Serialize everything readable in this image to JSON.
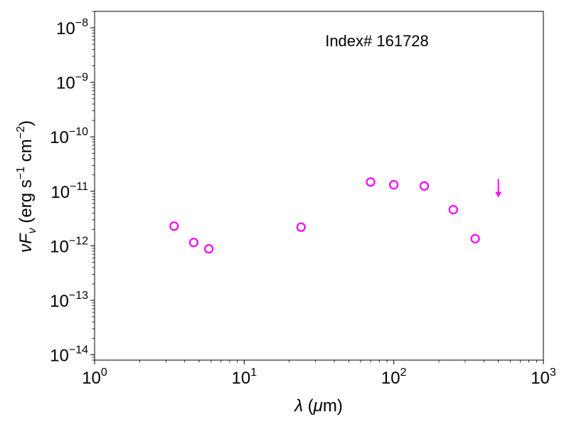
{
  "chart_data": {
    "type": "scatter",
    "annotation": "Index# 161728",
    "x_scale": "log",
    "y_scale": "log",
    "xlim": [
      1,
      1000
    ],
    "ylim": [
      8e-15,
      2e-08
    ],
    "x_ticks": [
      {
        "value": 1,
        "base": "10",
        "exp": "0"
      },
      {
        "value": 10,
        "base": "10",
        "exp": "1"
      },
      {
        "value": 100,
        "base": "10",
        "exp": "2"
      },
      {
        "value": 1000,
        "base": "10",
        "exp": "3"
      }
    ],
    "y_ticks": [
      {
        "value": 1e-14,
        "base": "10",
        "exp": "−14"
      },
      {
        "value": 1e-13,
        "base": "10",
        "exp": "−13"
      },
      {
        "value": 1e-12,
        "base": "10",
        "exp": "−12"
      },
      {
        "value": 1e-11,
        "base": "10",
        "exp": "−11"
      },
      {
        "value": 1e-10,
        "base": "10",
        "exp": "−10"
      },
      {
        "value": 1e-09,
        "base": "10",
        "exp": "−9"
      },
      {
        "value": 1e-08,
        "base": "10",
        "exp": "−8"
      }
    ],
    "xlabel": {
      "symbol": "λ",
      "text": " (",
      "unit_symbol": "μ",
      "unit_rest": "m)"
    },
    "ylabel": {
      "symbol": "νF",
      "sub": "ν",
      "t1": " (erg s",
      "e1": "−1",
      "t2": " cm",
      "e2": "−2",
      "t3": ")"
    },
    "grid": false,
    "series": [
      {
        "marker": "open-circle",
        "color": "#ff00ff",
        "x": [
          3.4,
          4.6,
          5.8,
          24,
          70,
          100,
          160,
          250,
          350
        ],
        "y": [
          2.3e-12,
          1.15e-12,
          8.8e-13,
          2.2e-12,
          1.48e-11,
          1.32e-11,
          1.25e-11,
          4.6e-12,
          1.35e-12
        ]
      },
      {
        "marker": "upper-limit-arrow",
        "color": "#ff00ff",
        "x": [
          500
        ],
        "y": [
          1.4e-11
        ]
      }
    ]
  }
}
